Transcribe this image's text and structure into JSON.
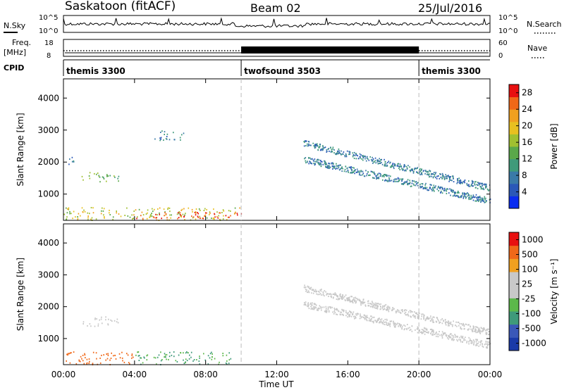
{
  "header": {
    "station": "Saskatoon (fitACF)",
    "beam": "Beam 02",
    "date": "25/Jul/2016"
  },
  "strip": {
    "nsky_label": "N.Sky",
    "nsearch_label": "N.Search",
    "nsky_ticks": [
      "10^5",
      "10^0"
    ],
    "freq_label_1": "Freq.",
    "freq_label_2": "[MHz]",
    "freq_ticks": [
      "18",
      "8"
    ],
    "nave_label": "Nave",
    "nave_ticks": [
      "60",
      "0"
    ],
    "cpid_label": "CPID"
  },
  "cpid_segments": [
    {
      "name": "themis 3300",
      "start_hr": 0,
      "end_hr": 10
    },
    {
      "name": "twofsound 3503",
      "start_hr": 10,
      "end_hr": 20
    },
    {
      "name": "themis 3300",
      "start_hr": 20,
      "end_hr": 24
    }
  ],
  "colors": {
    "power": [
      "#0a2cf0",
      "#2a58b8",
      "#3a7aa8",
      "#3f9a7a",
      "#5aa84a",
      "#a0c030",
      "#e8c020",
      "#f0a020",
      "#f06818",
      "#e81010"
    ],
    "velocity": [
      "#e81010",
      "#f06818",
      "#f0a020",
      "#c8c8c8",
      "#c8c8c8",
      "#5cb84a",
      "#3f9a7a",
      "#3a58b8",
      "#1a3aa8"
    ],
    "ground": "#c8c8c8"
  },
  "power_colorbar": {
    "label": "Power [dB]",
    "ticks": [
      "4",
      "8",
      "12",
      "16",
      "20",
      "24",
      "28"
    ]
  },
  "velocity_colorbar": {
    "label": "Velocity [m s⁻¹]",
    "ticks": [
      "1000",
      "500",
      "100",
      "25",
      "-25",
      "-100",
      "-500",
      "-1000"
    ]
  },
  "chart_data": [
    {
      "type": "heatmap",
      "title": "Saskatoon (fitACF) Beam 02 25/Jul/2016",
      "variable": "Power",
      "unit": "dB",
      "xlabel": "Time UT",
      "ylabel": "Slant Range [km]",
      "xlim": [
        0,
        24
      ],
      "ylim": [
        180,
        4600
      ],
      "xticks": [
        "00:00",
        "04:00",
        "08:00",
        "12:00",
        "16:00",
        "20:00",
        "00:00"
      ],
      "yticks": [
        "1000",
        "2000",
        "3000",
        "4000"
      ],
      "clim": [
        0,
        30
      ],
      "features": [
        {
          "name": "near-range E-region echoes",
          "t_start": 0.0,
          "t_end": 10.0,
          "range_km": [
            200,
            600
          ],
          "power_db": 18
        },
        {
          "name": "strong near echoes",
          "t_start": 4.0,
          "t_end": 10.0,
          "range_km": [
            250,
            450
          ],
          "power_db": 28
        },
        {
          "name": "early F-region band",
          "t_start": 1.0,
          "t_end": 3.2,
          "range_km": [
            1400,
            1700
          ],
          "power_db": 14
        },
        {
          "name": "morning far echoes",
          "t_start": 5.0,
          "t_end": 6.8,
          "range_km": [
            2700,
            3000
          ],
          "power_db": 8
        },
        {
          "name": "midnight far echoes",
          "t_start": 0.1,
          "t_end": 0.6,
          "range_km": [
            1900,
            2200
          ],
          "power_db": 8
        },
        {
          "name": "evening F-region arc",
          "t_start": 13.5,
          "t_end": 24.0,
          "range_km": [
            600,
            2700
          ],
          "power_db": 8
        }
      ]
    },
    {
      "type": "heatmap",
      "variable": "Velocity",
      "unit": "m s⁻¹",
      "xlabel": "Time UT",
      "ylabel": "Slant Range [km]",
      "xlim": [
        0,
        24
      ],
      "ylim": [
        180,
        4600
      ],
      "xticks": [
        "00:00",
        "04:00",
        "08:00",
        "12:00",
        "16:00",
        "20:00",
        "00:00"
      ],
      "yticks": [
        "1000",
        "2000",
        "3000",
        "4000"
      ],
      "clim": [
        -1000,
        1000
      ],
      "features": [
        {
          "name": "near-range negative velocity",
          "t_start": 0.0,
          "t_end": 4.0,
          "range_km": [
            200,
            600
          ],
          "velocity_ms": -300
        },
        {
          "name": "near-range positive velocity",
          "t_start": 4.0,
          "t_end": 9.5,
          "range_km": [
            200,
            600
          ],
          "velocity_ms": 100
        },
        {
          "name": "ground scatter band",
          "t_start": 1.0,
          "t_end": 3.2,
          "range_km": [
            1400,
            1700
          ],
          "velocity_ms": 0
        },
        {
          "name": "evening ground scatter arc",
          "t_start": 13.5,
          "t_end": 24.0,
          "range_km": [
            600,
            2700
          ],
          "velocity_ms": 0
        }
      ]
    }
  ],
  "footer": {
    "xlabel": "Time UT"
  }
}
